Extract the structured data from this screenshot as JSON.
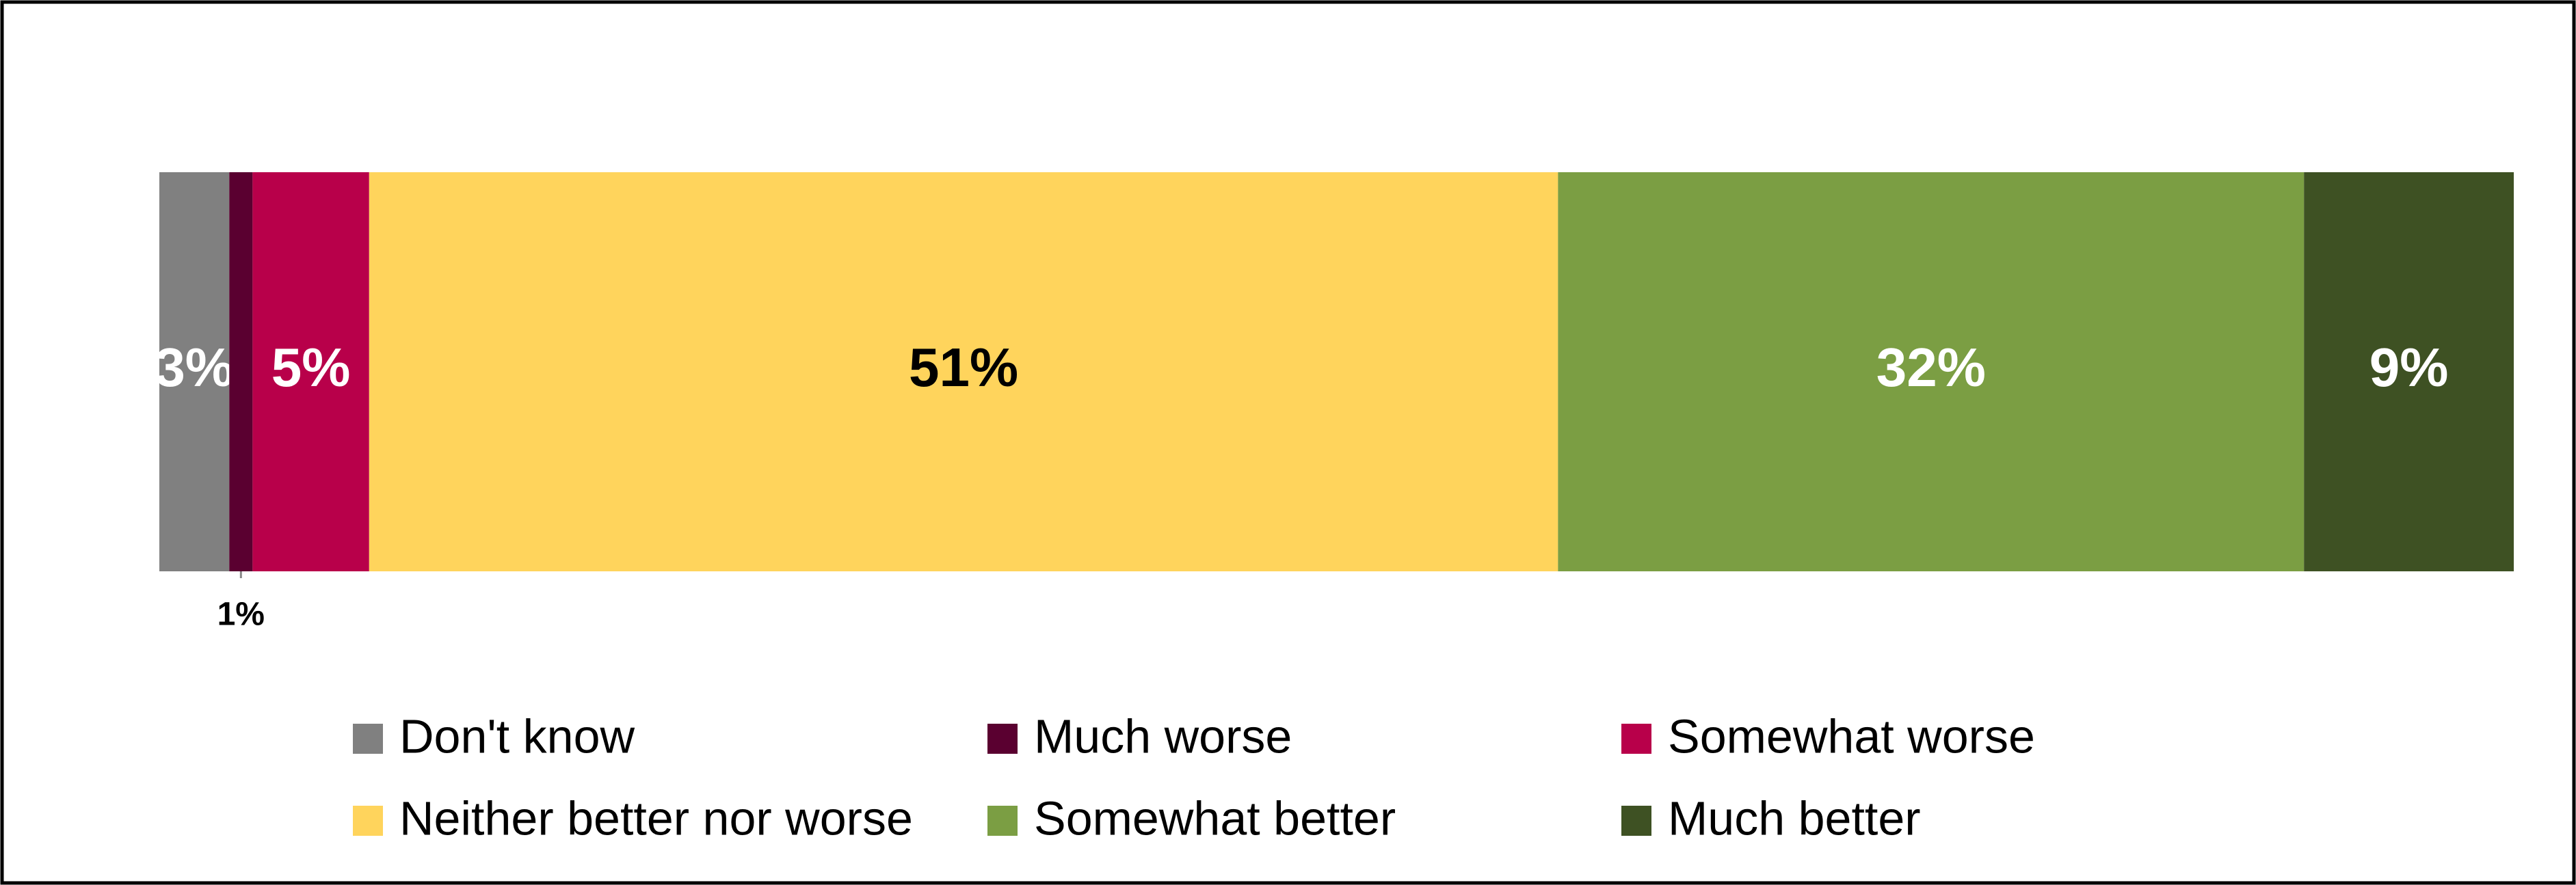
{
  "chart_data": {
    "type": "stacked-bar",
    "orientation": "horizontal",
    "series": [
      {
        "name": "Don't know",
        "color": "#808080",
        "label_color": "#ffffff",
        "values": [
          3
        ],
        "value_labels": [
          "3%"
        ]
      },
      {
        "name": "Much worse",
        "color": "#5a0030",
        "label_color": "#000000",
        "values": [
          1
        ],
        "value_labels": [
          "1%"
        ]
      },
      {
        "name": "Somewhat worse",
        "color": "#b8004a",
        "label_color": "#ffffff",
        "values": [
          5
        ],
        "value_labels": [
          "5%"
        ]
      },
      {
        "name": "Neither better nor worse",
        "color": "#ffd45c",
        "label_color": "#000000",
        "values": [
          51
        ],
        "value_labels": [
          "51%"
        ]
      },
      {
        "name": "Somewhat better",
        "color": "#7b9e43",
        "label_color": "#ffffff",
        "values": [
          32
        ],
        "value_labels": [
          "32%"
        ]
      },
      {
        "name": "Much better",
        "color": "#3e5123",
        "label_color": "#ffffff",
        "values": [
          9
        ],
        "value_labels": [
          "9%"
        ]
      }
    ]
  }
}
